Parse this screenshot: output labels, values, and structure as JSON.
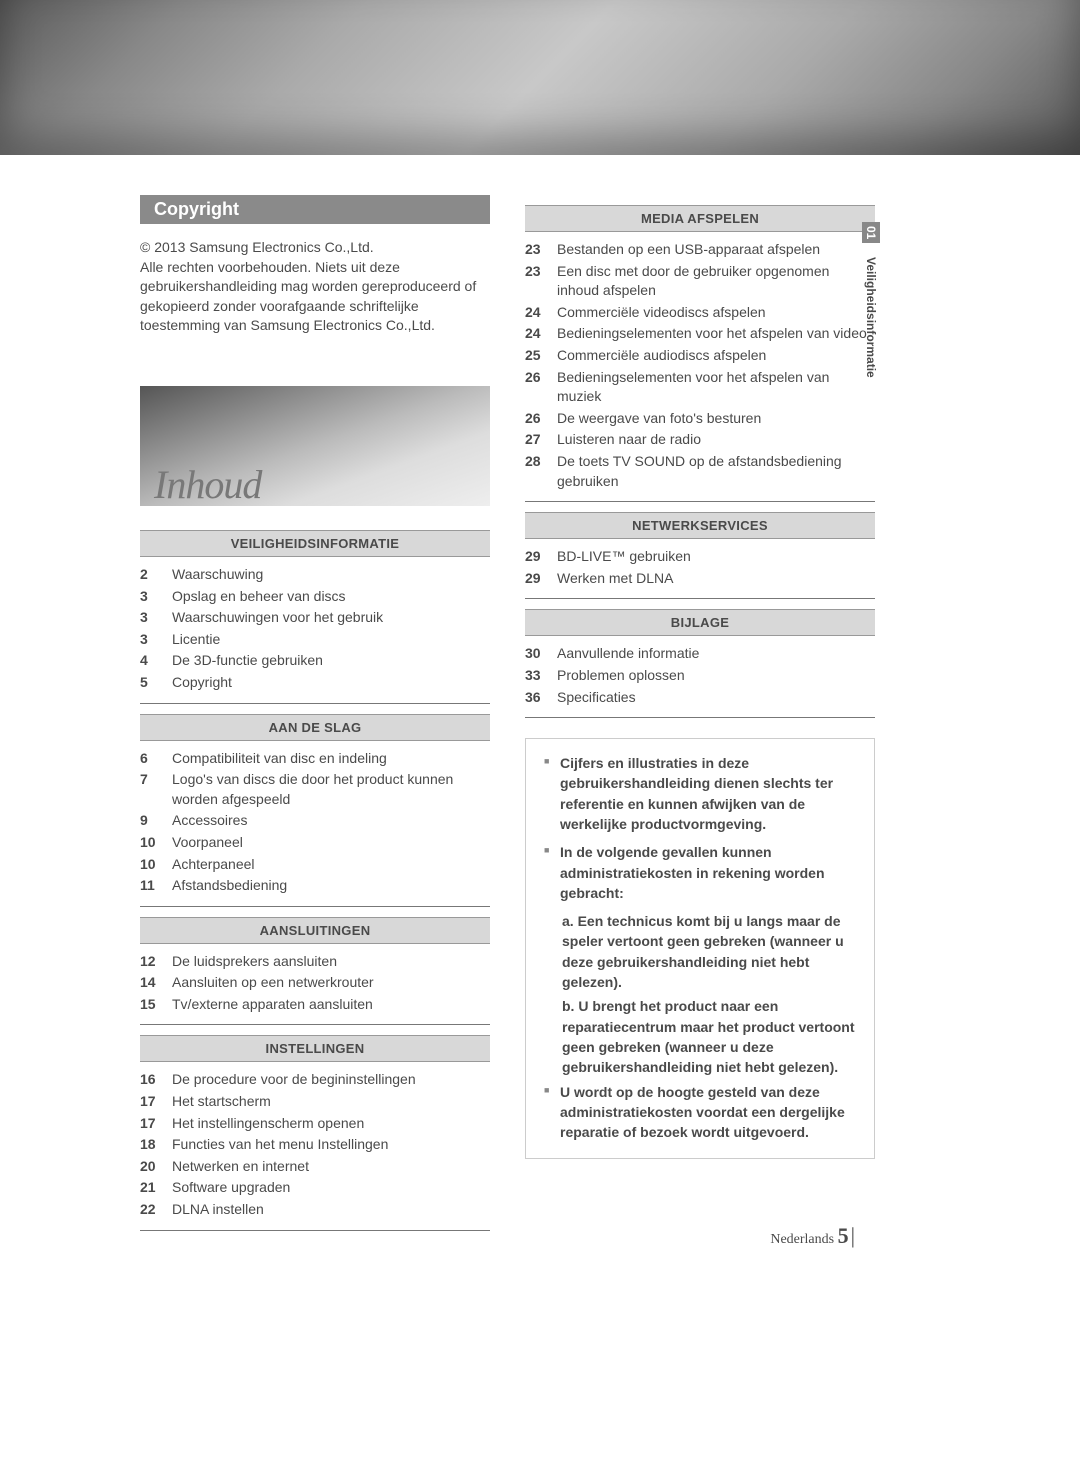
{
  "copyright": {
    "heading": "Copyright",
    "line1": "© 2013 Samsung Electronics Co.,Ltd.",
    "body": "Alle rechten voorbehouden. Niets uit deze gebruikershandleiding mag worden gereproduceerd of gekopieerd zonder voorafgaande schriftelijke toestemming van Samsung Electronics Co.,Ltd."
  },
  "inhoud_title": "Inhoud",
  "sideTab": {
    "num": "01",
    "label": "Veiligheidsinformatie"
  },
  "sections_left": [
    {
      "heading": "VEILIGHEIDSINFORMATIE",
      "items": [
        {
          "p": "2",
          "t": "Waarschuwing"
        },
        {
          "p": "3",
          "t": "Opslag en beheer van discs"
        },
        {
          "p": "3",
          "t": "Waarschuwingen voor het gebruik"
        },
        {
          "p": "3",
          "t": "Licentie"
        },
        {
          "p": "4",
          "t": "De 3D-functie gebruiken"
        },
        {
          "p": "5",
          "t": "Copyright"
        }
      ]
    },
    {
      "heading": "AAN DE SLAG",
      "items": [
        {
          "p": "6",
          "t": "Compatibiliteit van disc en indeling"
        },
        {
          "p": "7",
          "t": "Logo's van discs die door het product kunnen worden afgespeeld"
        },
        {
          "p": "9",
          "t": "Accessoires"
        },
        {
          "p": "10",
          "t": "Voorpaneel"
        },
        {
          "p": "10",
          "t": "Achterpaneel"
        },
        {
          "p": "11",
          "t": "Afstandsbediening"
        }
      ]
    },
    {
      "heading": "AANSLUITINGEN",
      "items": [
        {
          "p": "12",
          "t": "De luidsprekers aansluiten"
        },
        {
          "p": "14",
          "t": "Aansluiten op een netwerkrouter"
        },
        {
          "p": "15",
          "t": "Tv/externe apparaten aansluiten"
        }
      ]
    },
    {
      "heading": "INSTELLINGEN",
      "items": [
        {
          "p": "16",
          "t": "De procedure voor de begininstellingen"
        },
        {
          "p": "17",
          "t": "Het startscherm"
        },
        {
          "p": "17",
          "t": "Het instellingenscherm openen"
        },
        {
          "p": "18",
          "t": "Functies van het menu Instellingen"
        },
        {
          "p": "20",
          "t": "Netwerken en internet"
        },
        {
          "p": "21",
          "t": "Software upgraden"
        },
        {
          "p": "22",
          "t": "DLNA instellen"
        }
      ]
    }
  ],
  "sections_right": [
    {
      "heading": "MEDIA AFSPELEN",
      "items": [
        {
          "p": "23",
          "t": "Bestanden op een USB-apparaat afspelen"
        },
        {
          "p": "23",
          "t": "Een disc met door de gebruiker opgenomen inhoud afspelen"
        },
        {
          "p": "24",
          "t": "Commerciële videodiscs afspelen"
        },
        {
          "p": "24",
          "t": "Bedieningselementen voor het afspelen van video"
        },
        {
          "p": "25",
          "t": "Commerciële audiodiscs afspelen"
        },
        {
          "p": "26",
          "t": "Bedieningselementen voor het afspelen van muziek"
        },
        {
          "p": "26",
          "t": "De weergave van foto's besturen"
        },
        {
          "p": "27",
          "t": "Luisteren naar de radio"
        },
        {
          "p": "28",
          "t": "De toets TV SOUND op de afstandsbediening gebruiken"
        }
      ]
    },
    {
      "heading": "NETWERKSERVICES",
      "items": [
        {
          "p": "29",
          "t": "BD-LIVE™ gebruiken"
        },
        {
          "p": "29",
          "t": "Werken met DLNA"
        }
      ]
    },
    {
      "heading": "BIJLAGE",
      "items": [
        {
          "p": "30",
          "t": "Aanvullende informatie"
        },
        {
          "p": "33",
          "t": "Problemen oplossen"
        },
        {
          "p": "36",
          "t": "Specificaties"
        }
      ]
    }
  ],
  "notes": {
    "b1": "Cijfers en illustraties in deze gebruikershandleiding dienen slechts ter referentie en kunnen afwijken van de werkelijke productvormgeving.",
    "b2": "In de volgende gevallen kunnen administratiekosten in rekening worden gebracht:",
    "b2a": "a. Een technicus komt bij u langs maar de speler vertoont geen gebreken (wanneer u deze gebruikershandleiding niet hebt gelezen).",
    "b2b": "b. U brengt het product naar een reparatiecentrum maar het product vertoont geen gebreken (wanneer u deze gebruikershandleiding niet hebt gelezen).",
    "b3": "U wordt op de hoogte gesteld van deze administratiekosten voordat een dergelijke reparatie of bezoek wordt uitgevoerd."
  },
  "footer": {
    "lang": "Nederlands",
    "page": "5"
  }
}
